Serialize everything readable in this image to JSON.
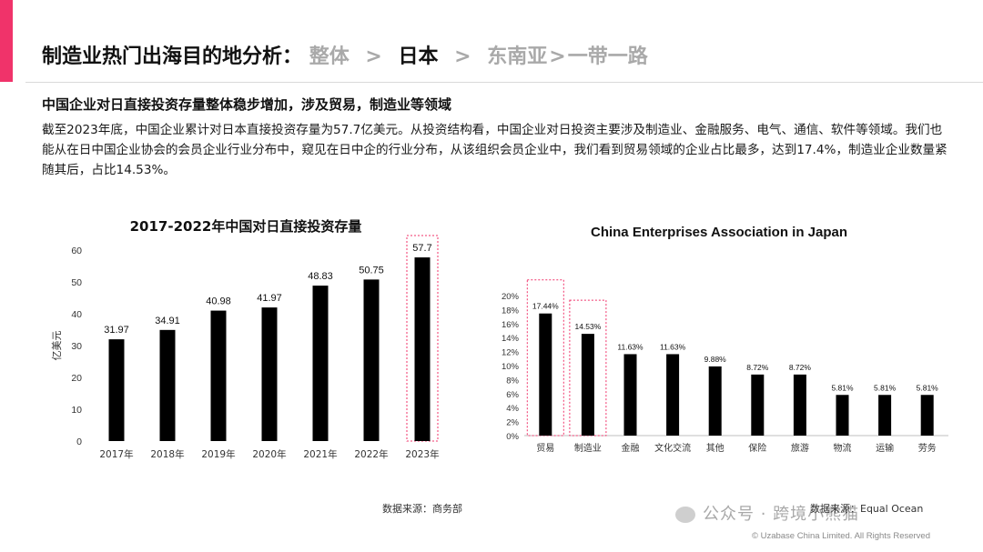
{
  "header": {
    "title_prefix": "制造业热门出海目的地分析：",
    "crumb_1": "整体",
    "sep_1": ">",
    "crumb_2": "日本",
    "sep_2": ">",
    "crumb_3": "东南亚",
    "sep_3": ">",
    "crumb_4": "一带一路",
    "accent_color": "#f0336a"
  },
  "subheading": "中国企业对日直接投资存量整体稳步增加，涉及贸易，制造业等领域",
  "body_text": "截至2023年底，中国企业累计对日本直接投资存量为57.7亿美元。从投资结构看，中国企业对日投资主要涉及制造业、金融服务、电气、通信、软件等领域。我们也能从在日中国企业协会的会员企业行业分布中，窥见在日中企的行业分布，从该组织会员企业中，我们看到贸易领域的企业占比最多，达到17.4%，制造业企业数量紧随其后，占比14.53%。",
  "chart_data": [
    {
      "type": "bar",
      "title": "2017-2022年中国对日直接投资存量",
      "ylabel": "亿美元",
      "xlabel": "",
      "categories": [
        "2017年",
        "2018年",
        "2019年",
        "2020年",
        "2021年",
        "2022年",
        "2023年"
      ],
      "values": [
        31.97,
        34.91,
        40.98,
        41.97,
        48.83,
        50.75,
        57.7
      ],
      "value_labels": [
        "31.97",
        "34.91",
        "40.98",
        "41.97",
        "48.83",
        "50.75",
        "57.7"
      ],
      "ylim": [
        0,
        60
      ],
      "yticks": [
        "0",
        "10",
        "20",
        "30",
        "40",
        "50",
        "60"
      ],
      "highlight_index": 6,
      "bar_color": "#000000",
      "highlight_color": "#f0336a",
      "grid": false
    },
    {
      "type": "bar",
      "title": "China Enterprises Association in Japan",
      "ylabel": "",
      "xlabel": "",
      "categories": [
        "贸易",
        "制造业",
        "金融",
        "文化交流",
        "其他",
        "保险",
        "旅游",
        "物流",
        "运输",
        "劳务"
      ],
      "values": [
        17.44,
        14.53,
        11.63,
        11.63,
        9.88,
        8.72,
        8.72,
        5.81,
        5.81,
        5.81
      ],
      "value_labels": [
        "17.44%",
        "14.53%",
        "11.63%",
        "11.63%",
        "9.88%",
        "8.72%",
        "8.72%",
        "5.81%",
        "5.81%",
        "5.81%"
      ],
      "ylim": [
        0,
        20
      ],
      "yticks": [
        "0%",
        "2%",
        "4%",
        "6%",
        "8%",
        "10%",
        "12%",
        "14%",
        "16%",
        "18%",
        "20%"
      ],
      "highlight_indices": [
        0,
        1
      ],
      "bar_color": "#000000",
      "highlight_color": "#f0336a",
      "grid": false
    }
  ],
  "source_left": "数据来源：商务部",
  "source_right": "数据来源：Equal Ocean",
  "watermark": "公众号 · 跨境小熊猫",
  "copyright": "© Uzabase China Limited. All Rights Reserved"
}
